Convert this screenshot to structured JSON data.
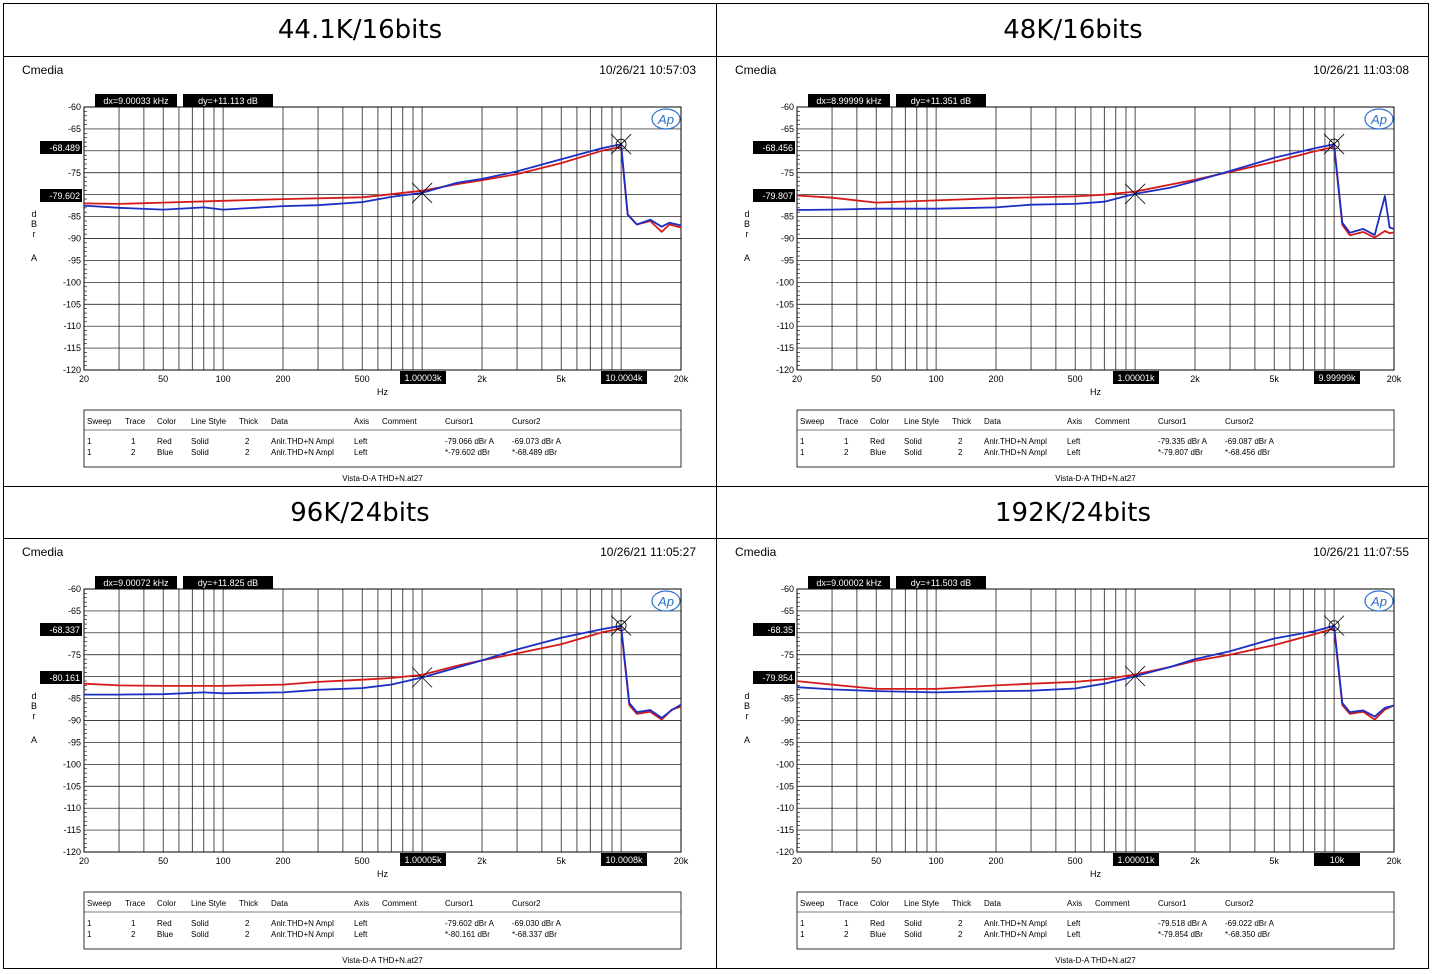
{
  "panels": [
    {
      "title": "44.1K/16bits",
      "brand": "Cmedia",
      "timestamp": "10/26/21 10:57:03",
      "dx_label": "dx=9.00033 kHz",
      "dy_label": "dy=+11.113 dB",
      "cursor1_label": "1.00003k",
      "cursor2_label": "10.0004k",
      "cursor_y_labels": [
        "-68.489",
        "-79.602"
      ],
      "legend_rows": [
        {
          "sweep": "1",
          "trace": "1",
          "color": "Red",
          "style": "Solid",
          "thick": "2",
          "data": "Anlr.THD+N Ampl",
          "axis": "Left",
          "comment": "",
          "c1": "-79.066  dBr A",
          "c2": "-69.073  dBr A"
        },
        {
          "sweep": "1",
          "trace": "2",
          "color": "Blue",
          "style": "Solid",
          "thick": "2",
          "data": "Anlr.THD+N Ampl",
          "axis": "Left",
          "comment": "",
          "c1": "*-79.602  dBr",
          "c2": "*-68.489  dBr"
        }
      ],
      "footer": "Vista-D-A THD+N.at27"
    },
    {
      "title": "48K/16bits",
      "brand": "Cmedia",
      "timestamp": "10/26/21 11:03:08",
      "dx_label": "dx=8.99999 kHz",
      "dy_label": "dy=+11.351  dB",
      "cursor1_label": "1.00001k",
      "cursor2_label": "9.99999k",
      "cursor_y_labels": [
        "-68.456",
        "-79.807"
      ],
      "legend_rows": [
        {
          "sweep": "1",
          "trace": "1",
          "color": "Red",
          "style": "Solid",
          "thick": "2",
          "data": "Anlr.THD+N Ampl",
          "axis": "Left",
          "comment": "",
          "c1": "-79.335  dBr A",
          "c2": "-69.087  dBr A"
        },
        {
          "sweep": "1",
          "trace": "2",
          "color": "Blue",
          "style": "Solid",
          "thick": "2",
          "data": "Anlr.THD+N Ampl",
          "axis": "Left",
          "comment": "",
          "c1": "*-79.807  dBr",
          "c2": "*-68.456  dBr"
        }
      ],
      "footer": "Vista-D-A THD+N.at27"
    },
    {
      "title": "96K/24bits",
      "brand": "Cmedia",
      "timestamp": "10/26/21 11:05:27",
      "dx_label": "dx=9.00072 kHz",
      "dy_label": "dy=+11.825  dB",
      "cursor1_label": "1.00005k",
      "cursor2_label": "10.0008k",
      "cursor_y_labels": [
        "-68.337",
        "-80.161"
      ],
      "legend_rows": [
        {
          "sweep": "1",
          "trace": "1",
          "color": "Red",
          "style": "Solid",
          "thick": "2",
          "data": "Anlr.THD+N Ampl",
          "axis": "Left",
          "comment": "",
          "c1": "-79.602  dBr A",
          "c2": "-69.030  dBr A"
        },
        {
          "sweep": "1",
          "trace": "2",
          "color": "Blue",
          "style": "Solid",
          "thick": "2",
          "data": "Anlr.THD+N Ampl",
          "axis": "Left",
          "comment": "",
          "c1": "*-80.161  dBr",
          "c2": "*-68.337  dBr"
        }
      ],
      "footer": "Vista-D-A THD+N.at27"
    },
    {
      "title": "192K/24bits",
      "brand": "Cmedia",
      "timestamp": "10/26/21 11:07:55",
      "dx_label": "dx=9.00002 kHz",
      "dy_label": "dy=+11.503  dB",
      "cursor1_label": "1.00001k",
      "cursor2_label": "10k",
      "cursor_y_labels": [
        "-68.35",
        "-79.854"
      ],
      "legend_rows": [
        {
          "sweep": "1",
          "trace": "1",
          "color": "Red",
          "style": "Solid",
          "thick": "2",
          "data": "Anlr.THD+N Ampl",
          "axis": "Left",
          "comment": "",
          "c1": "-79.518  dBr A",
          "c2": "-69.022  dBr A"
        },
        {
          "sweep": "1",
          "trace": "2",
          "color": "Blue",
          "style": "Solid",
          "thick": "2",
          "data": "Anlr.THD+N Ampl",
          "axis": "Left",
          "comment": "",
          "c1": "*-79.854  dBr",
          "c2": "*-68.350  dBr"
        }
      ],
      "footer": "Vista-D-A THD+N.at27"
    }
  ],
  "legend_headers": [
    "Sweep",
    "Trace",
    "Color",
    "Line Style",
    "Thick",
    "Data",
    "Axis",
    "Comment",
    "Cursor1",
    "Cursor2"
  ],
  "logo_text": "Ap",
  "chart_data": [
    {
      "type": "line",
      "title": "44.1K/16bits",
      "xlabel": "Hz",
      "ylabel": "d B r A",
      "xscale": "log",
      "xlim": [
        20,
        20000
      ],
      "ylim": [
        -120,
        -60
      ],
      "x_ticks": [
        {
          "v": 20,
          "t": "20"
        },
        {
          "v": 50,
          "t": "50"
        },
        {
          "v": 100,
          "t": "100"
        },
        {
          "v": 200,
          "t": "200"
        },
        {
          "v": 500,
          "t": "500"
        },
        {
          "v": 2000,
          "t": "2k"
        },
        {
          "v": 5000,
          "t": "5k"
        },
        {
          "v": 20000,
          "t": "20k"
        }
      ],
      "y_ticks": [
        -60,
        -65,
        -70,
        -75,
        -80,
        -85,
        -90,
        -95,
        -100,
        -105,
        -110,
        -115,
        -120
      ],
      "cursors": [
        {
          "x": 1000.03,
          "y": -79.602
        },
        {
          "x": 10000.4,
          "y": -68.489
        }
      ],
      "series": [
        {
          "name": "Red",
          "color": "#d61a1a",
          "x": [
            20,
            30,
            50,
            100,
            200,
            500,
            700,
            1000,
            1500,
            2000,
            3000,
            5000,
            8000,
            10000,
            10800,
            12000,
            14000,
            16000,
            17500,
            20000
          ],
          "y": [
            -82.0,
            -82.1,
            -81.8,
            -81.4,
            -81.0,
            -80.6,
            -79.9,
            -79.1,
            -77.6,
            -76.7,
            -75.3,
            -72.8,
            -70.0,
            -69.1,
            -84.5,
            -86.8,
            -86.0,
            -88.5,
            -86.8,
            -87.5
          ]
        },
        {
          "name": "Blue",
          "color": "#1c2fc4",
          "x": [
            20,
            30,
            50,
            80,
            100,
            200,
            300,
            500,
            700,
            1000,
            1500,
            2000,
            3000,
            5000,
            8000,
            10000,
            10800,
            12000,
            14000,
            16000,
            17500,
            20000
          ],
          "y": [
            -82.5,
            -83.0,
            -83.4,
            -82.9,
            -83.4,
            -82.6,
            -82.4,
            -81.7,
            -80.5,
            -79.6,
            -77.3,
            -76.4,
            -74.7,
            -71.9,
            -69.4,
            -68.5,
            -84.6,
            -86.8,
            -85.7,
            -87.3,
            -86.4,
            -87.0
          ]
        }
      ]
    },
    {
      "type": "line",
      "title": "48K/16bits",
      "xlabel": "Hz",
      "ylabel": "d B r A",
      "xscale": "log",
      "xlim": [
        20,
        20000
      ],
      "ylim": [
        -120,
        -60
      ],
      "x_ticks": [
        {
          "v": 20,
          "t": "20"
        },
        {
          "v": 50,
          "t": "50"
        },
        {
          "v": 100,
          "t": "100"
        },
        {
          "v": 200,
          "t": "200"
        },
        {
          "v": 500,
          "t": "500"
        },
        {
          "v": 2000,
          "t": "2k"
        },
        {
          "v": 5000,
          "t": "5k"
        },
        {
          "v": 20000,
          "t": "20k"
        }
      ],
      "y_ticks": [
        -60,
        -65,
        -70,
        -75,
        -80,
        -85,
        -90,
        -95,
        -100,
        -105,
        -110,
        -115,
        -120
      ],
      "cursors": [
        {
          "x": 1000.01,
          "y": -79.807
        },
        {
          "x": 9999.99,
          "y": -68.456
        }
      ],
      "series": [
        {
          "name": "Red",
          "color": "#d61a1a",
          "x": [
            20,
            30,
            50,
            100,
            200,
            500,
            700,
            1000,
            1500,
            2000,
            3000,
            5000,
            8000,
            10000,
            11000,
            12000,
            14000,
            16000,
            18000,
            19000,
            20000
          ],
          "y": [
            -80.2,
            -80.7,
            -81.8,
            -81.3,
            -80.8,
            -80.4,
            -80.0,
            -79.3,
            -77.7,
            -76.6,
            -74.8,
            -72.5,
            -70.1,
            -69.1,
            -86.9,
            -89.3,
            -88.5,
            -89.8,
            -88.3,
            -88.8,
            -88.6
          ]
        },
        {
          "name": "Blue",
          "color": "#1c2fc4",
          "x": [
            20,
            30,
            50,
            100,
            200,
            300,
            500,
            700,
            1000,
            1500,
            2000,
            3000,
            5000,
            8000,
            10000,
            11000,
            12000,
            14000,
            16000,
            18000,
            19000,
            20000
          ],
          "y": [
            -83.5,
            -83.4,
            -83.2,
            -83.2,
            -82.9,
            -82.3,
            -82.1,
            -81.6,
            -79.8,
            -78.4,
            -76.9,
            -74.6,
            -71.6,
            -69.4,
            -68.5,
            -86.4,
            -88.7,
            -87.8,
            -89.2,
            -80.3,
            -87.5,
            -87.8
          ]
        }
      ]
    },
    {
      "type": "line",
      "title": "96K/24bits",
      "xlabel": "Hz",
      "ylabel": "d B r A",
      "xscale": "log",
      "xlim": [
        20,
        20000
      ],
      "ylim": [
        -120,
        -60
      ],
      "x_ticks": [
        {
          "v": 20,
          "t": "20"
        },
        {
          "v": 50,
          "t": "50"
        },
        {
          "v": 100,
          "t": "100"
        },
        {
          "v": 200,
          "t": "200"
        },
        {
          "v": 500,
          "t": "500"
        },
        {
          "v": 2000,
          "t": "2k"
        },
        {
          "v": 5000,
          "t": "5k"
        },
        {
          "v": 20000,
          "t": "20k"
        }
      ],
      "y_ticks": [
        -60,
        -65,
        -70,
        -75,
        -80,
        -85,
        -90,
        -95,
        -100,
        -105,
        -110,
        -115,
        -120
      ],
      "cursors": [
        {
          "x": 1000.05,
          "y": -80.161
        },
        {
          "x": 10000.8,
          "y": -68.337
        }
      ],
      "series": [
        {
          "name": "Red",
          "color": "#d61a1a",
          "x": [
            20,
            30,
            50,
            100,
            200,
            300,
            500,
            700,
            1000,
            1500,
            2000,
            3000,
            5000,
            8000,
            10000,
            11000,
            12000,
            14000,
            16000,
            18000,
            20000
          ],
          "y": [
            -81.6,
            -82.0,
            -82.1,
            -82.1,
            -81.8,
            -81.2,
            -80.7,
            -80.3,
            -79.6,
            -77.5,
            -76.3,
            -74.7,
            -72.6,
            -69.9,
            -69.0,
            -86.5,
            -88.5,
            -88.0,
            -89.8,
            -87.5,
            -86.8
          ]
        },
        {
          "name": "Blue",
          "color": "#1c2fc4",
          "x": [
            20,
            30,
            50,
            80,
            100,
            200,
            300,
            500,
            700,
            1000,
            1500,
            2000,
            3000,
            5000,
            8000,
            10000,
            11000,
            12000,
            14000,
            16000,
            18000,
            20000
          ],
          "y": [
            -84.1,
            -84.1,
            -84.0,
            -83.6,
            -83.8,
            -83.6,
            -83.0,
            -82.6,
            -81.8,
            -80.2,
            -77.9,
            -76.3,
            -73.8,
            -71.1,
            -69.2,
            -68.4,
            -86.0,
            -88.1,
            -87.6,
            -89.4,
            -87.6,
            -86.4
          ]
        }
      ]
    },
    {
      "type": "line",
      "title": "192K/24bits",
      "xlabel": "Hz",
      "ylabel": "d B r A",
      "xscale": "log",
      "xlim": [
        20,
        20000
      ],
      "ylim": [
        -120,
        -60
      ],
      "x_ticks": [
        {
          "v": 20,
          "t": "20"
        },
        {
          "v": 50,
          "t": "50"
        },
        {
          "v": 100,
          "t": "100"
        },
        {
          "v": 200,
          "t": "200"
        },
        {
          "v": 500,
          "t": "500"
        },
        {
          "v": 2000,
          "t": "2k"
        },
        {
          "v": 5000,
          "t": "5k"
        },
        {
          "v": 20000,
          "t": "20k"
        }
      ],
      "y_ticks": [
        -60,
        -65,
        -70,
        -75,
        -80,
        -85,
        -90,
        -95,
        -100,
        -105,
        -110,
        -115,
        -120
      ],
      "cursors": [
        {
          "x": 1000.01,
          "y": -79.854
        },
        {
          "x": 10000,
          "y": -68.35
        }
      ],
      "series": [
        {
          "name": "Red",
          "color": "#d61a1a",
          "x": [
            20,
            30,
            50,
            100,
            200,
            300,
            500,
            700,
            1000,
            1500,
            2000,
            3000,
            5000,
            8000,
            10000,
            11000,
            12000,
            14000,
            16000,
            18000,
            20000
          ],
          "y": [
            -81.0,
            -81.8,
            -82.8,
            -82.8,
            -82.0,
            -81.6,
            -81.2,
            -80.6,
            -79.5,
            -77.8,
            -76.4,
            -75.0,
            -72.8,
            -70.3,
            -69.0,
            -86.5,
            -88.5,
            -88.0,
            -89.8,
            -87.5,
            -86.5
          ]
        },
        {
          "name": "Blue",
          "color": "#1c2fc4",
          "x": [
            20,
            30,
            50,
            80,
            100,
            200,
            300,
            500,
            700,
            1000,
            1500,
            2000,
            3000,
            5000,
            8000,
            10000,
            11000,
            12000,
            14000,
            16000,
            18000,
            20000
          ],
          "y": [
            -82.4,
            -82.9,
            -83.3,
            -83.5,
            -83.6,
            -83.3,
            -83.2,
            -82.7,
            -81.6,
            -79.9,
            -77.8,
            -76.0,
            -74.2,
            -71.3,
            -69.6,
            -68.4,
            -86.0,
            -88.1,
            -87.7,
            -89.1,
            -87.1,
            -86.6
          ]
        }
      ]
    }
  ]
}
